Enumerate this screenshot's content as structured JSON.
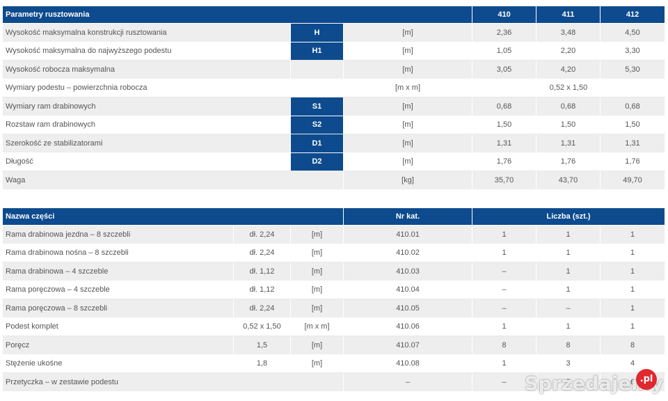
{
  "params_table": {
    "header": {
      "title": "Parametry rusztowania",
      "models": [
        "410",
        "411",
        "412"
      ]
    },
    "rows": [
      {
        "label": "Wysokość maksymalna konstrukcji rusztowania",
        "symbol": "H",
        "unit": "[m]",
        "values": [
          "2,36",
          "3,48",
          "4,50"
        ]
      },
      {
        "label": "Wysokość maksymalna do najwyższego podestu",
        "symbol": "H1",
        "unit": "[m]",
        "values": [
          "1,05",
          "2,20",
          "3,30"
        ]
      },
      {
        "label": "Wysokość robocza maksymalna",
        "symbol": "",
        "unit": "[m]",
        "values": [
          "3,05",
          "4,20",
          "5,30"
        ]
      },
      {
        "label": "Wymiary podestu – powierzchnia robocza",
        "symbol": "",
        "unit": "[m x m]",
        "merged_value": "0,52 x 1,50"
      },
      {
        "label": "Wymiary ram drabinowych",
        "symbol": "S1",
        "unit": "[m]",
        "values": [
          "0,68",
          "0,68",
          "0,68"
        ]
      },
      {
        "label": "Rozstaw ram drabinowych",
        "symbol": "S2",
        "unit": "[m]",
        "values": [
          "1,50",
          "1,50",
          "1,50"
        ]
      },
      {
        "label": "Szerokość ze stabilizatorami",
        "symbol": "D1",
        "unit": "[m]",
        "values": [
          "1,31",
          "1,31",
          "1,31"
        ]
      },
      {
        "label": "Długość",
        "symbol": "D2",
        "unit": "[m]",
        "values": [
          "1,76",
          "1,76",
          "1,76"
        ]
      },
      {
        "label": "Waga",
        "symbol": "",
        "unit": "[kg]",
        "values": [
          "35,70",
          "43,70",
          "49,70"
        ]
      }
    ]
  },
  "parts_table": {
    "header": {
      "name": "Nazwa części",
      "catalog": "Nr kat.",
      "count": "Liczba (szt.)"
    },
    "rows": [
      {
        "name": "Rama drabinowa jezdna – 8 szczebli",
        "dim": "dł. 2,24",
        "unit": "[m]",
        "catalog": "410.01",
        "counts": [
          "1",
          "1",
          "1"
        ]
      },
      {
        "name": "Rama drabinowa nośna – 8 szczebli",
        "dim": "dł. 2,24",
        "unit": "[m]",
        "catalog": "410.02",
        "counts": [
          "1",
          "1",
          "1"
        ]
      },
      {
        "name": "Rama drabinowa – 4 szczeble",
        "dim": "dł. 1,12",
        "unit": "[m]",
        "catalog": "410.03",
        "counts": [
          "–",
          "1",
          "1"
        ]
      },
      {
        "name": "Rama poręczowa – 4 szczeble",
        "dim": "dł. 1,12",
        "unit": "[m]",
        "catalog": "410.04",
        "counts": [
          "–",
          "1",
          "1"
        ]
      },
      {
        "name": "Rama poręczowa – 8 szczebli",
        "dim": "dł. 2,24",
        "unit": "[m]",
        "catalog": "410.05",
        "counts": [
          "–",
          "–",
          "1"
        ]
      },
      {
        "name": "Podest komplet",
        "dim": "0,52 x 1,50",
        "unit": "[m x m]",
        "catalog": "410.06",
        "counts": [
          "1",
          "1",
          "1"
        ]
      },
      {
        "name": "Poręcz",
        "dim": "1,5",
        "unit": "[m]",
        "catalog": "410.07",
        "counts": [
          "8",
          "8",
          "8"
        ]
      },
      {
        "name": "Stężenie ukośne",
        "dim": "1,8",
        "unit": "[m]",
        "catalog": "410.08",
        "counts": [
          "1",
          "3",
          "4"
        ]
      },
      {
        "name": "Przetyczka – w zestawie podestu",
        "dim": "",
        "unit": "",
        "catalog": "–",
        "counts": [
          "–",
          "2",
          "6"
        ]
      }
    ]
  },
  "watermark": {
    "text": "Sprzedajemy",
    "badge": ".pl"
  },
  "colors": {
    "header": "#0d4b8e",
    "row_alt": "#eeeeee",
    "watermark_badge": "#e0282f"
  }
}
